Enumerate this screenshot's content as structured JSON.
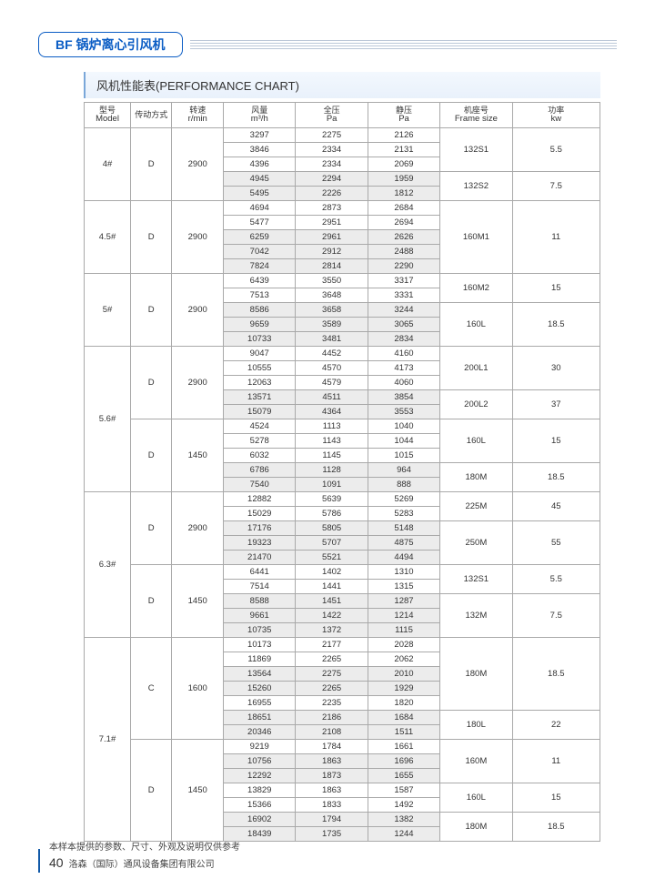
{
  "title_text": "BF 锅炉离心引风机",
  "section_title": "风机性能表(PERFORMANCE CHART)",
  "headers": [
    {
      "cn": "型号",
      "en": "Model"
    },
    {
      "cn": "传动方式",
      "en": ""
    },
    {
      "cn": "转速",
      "en": "r/min"
    },
    {
      "cn": "风量",
      "en": "m³/h"
    },
    {
      "cn": "全压",
      "en": "Pa"
    },
    {
      "cn": "静压",
      "en": "Pa"
    },
    {
      "cn": "机座号",
      "en": "Frame size"
    },
    {
      "cn": "功率",
      "en": "kw"
    }
  ],
  "groups": [
    {
      "model": "4#",
      "blocks": [
        {
          "drive": "D",
          "rpm": "2900",
          "rows": [
            {
              "f": "3297",
              "pt": "2275",
              "ps": "2126",
              "shade": false
            },
            {
              "f": "3846",
              "pt": "2334",
              "ps": "2131",
              "shade": false
            },
            {
              "f": "4396",
              "pt": "2334",
              "ps": "2069",
              "shade": false
            },
            {
              "f": "4945",
              "pt": "2294",
              "ps": "1959",
              "shade": true
            },
            {
              "f": "5495",
              "pt": "2226",
              "ps": "1812",
              "shade": true
            }
          ],
          "frames": [
            {
              "name": "132S1",
              "kw": "5.5",
              "span": 3
            },
            {
              "name": "132S2",
              "kw": "7.5",
              "span": 2
            }
          ]
        }
      ]
    },
    {
      "model": "4.5#",
      "blocks": [
        {
          "drive": "D",
          "rpm": "2900",
          "rows": [
            {
              "f": "4694",
              "pt": "2873",
              "ps": "2684",
              "shade": false
            },
            {
              "f": "5477",
              "pt": "2951",
              "ps": "2694",
              "shade": false
            },
            {
              "f": "6259",
              "pt": "2961",
              "ps": "2626",
              "shade": true
            },
            {
              "f": "7042",
              "pt": "2912",
              "ps": "2488",
              "shade": true
            },
            {
              "f": "7824",
              "pt": "2814",
              "ps": "2290",
              "shade": true
            }
          ],
          "frames": [
            {
              "name": "160M1",
              "kw": "11",
              "span": 5
            }
          ]
        }
      ]
    },
    {
      "model": "5#",
      "blocks": [
        {
          "drive": "D",
          "rpm": "2900",
          "rows": [
            {
              "f": "6439",
              "pt": "3550",
              "ps": "3317",
              "shade": false
            },
            {
              "f": "7513",
              "pt": "3648",
              "ps": "3331",
              "shade": false
            },
            {
              "f": "8586",
              "pt": "3658",
              "ps": "3244",
              "shade": true
            },
            {
              "f": "9659",
              "pt": "3589",
              "ps": "3065",
              "shade": true
            },
            {
              "f": "10733",
              "pt": "3481",
              "ps": "2834",
              "shade": true
            }
          ],
          "frames": [
            {
              "name": "160M2",
              "kw": "15",
              "span": 2
            },
            {
              "name": "160L",
              "kw": "18.5",
              "span": 3
            }
          ]
        }
      ]
    },
    {
      "model": "5.6#",
      "blocks": [
        {
          "drive": "D",
          "rpm": "2900",
          "rows": [
            {
              "f": "9047",
              "pt": "4452",
              "ps": "4160",
              "shade": false
            },
            {
              "f": "10555",
              "pt": "4570",
              "ps": "4173",
              "shade": false
            },
            {
              "f": "12063",
              "pt": "4579",
              "ps": "4060",
              "shade": false
            },
            {
              "f": "13571",
              "pt": "4511",
              "ps": "3854",
              "shade": true
            },
            {
              "f": "15079",
              "pt": "4364",
              "ps": "3553",
              "shade": true
            }
          ],
          "frames": [
            {
              "name": "200L1",
              "kw": "30",
              "span": 3
            },
            {
              "name": "200L2",
              "kw": "37",
              "span": 2
            }
          ]
        },
        {
          "drive": "D",
          "rpm": "1450",
          "rows": [
            {
              "f": "4524",
              "pt": "1113",
              "ps": "1040",
              "shade": false
            },
            {
              "f": "5278",
              "pt": "1143",
              "ps": "1044",
              "shade": false
            },
            {
              "f": "6032",
              "pt": "1145",
              "ps": "1015",
              "shade": false
            },
            {
              "f": "6786",
              "pt": "1128",
              "ps": "964",
              "shade": true
            },
            {
              "f": "7540",
              "pt": "1091",
              "ps": "888",
              "shade": true
            }
          ],
          "frames": [
            {
              "name": "160L",
              "kw": "15",
              "span": 3
            },
            {
              "name": "180M",
              "kw": "18.5",
              "span": 2
            }
          ]
        }
      ]
    },
    {
      "model": "6.3#",
      "blocks": [
        {
          "drive": "D",
          "rpm": "2900",
          "rows": [
            {
              "f": "12882",
              "pt": "5639",
              "ps": "5269",
              "shade": false
            },
            {
              "f": "15029",
              "pt": "5786",
              "ps": "5283",
              "shade": false
            },
            {
              "f": "17176",
              "pt": "5805",
              "ps": "5148",
              "shade": true
            },
            {
              "f": "19323",
              "pt": "5707",
              "ps": "4875",
              "shade": true
            },
            {
              "f": "21470",
              "pt": "5521",
              "ps": "4494",
              "shade": true
            }
          ],
          "frames": [
            {
              "name": "225M",
              "kw": "45",
              "span": 2
            },
            {
              "name": "250M",
              "kw": "55",
              "span": 3
            }
          ]
        },
        {
          "drive": "D",
          "rpm": "1450",
          "rows": [
            {
              "f": "6441",
              "pt": "1402",
              "ps": "1310",
              "shade": false
            },
            {
              "f": "7514",
              "pt": "1441",
              "ps": "1315",
              "shade": false
            },
            {
              "f": "8588",
              "pt": "1451",
              "ps": "1287",
              "shade": true
            },
            {
              "f": "9661",
              "pt": "1422",
              "ps": "1214",
              "shade": true
            },
            {
              "f": "10735",
              "pt": "1372",
              "ps": "1115",
              "shade": true
            }
          ],
          "frames": [
            {
              "name": "132S1",
              "kw": "5.5",
              "span": 2
            },
            {
              "name": "132M",
              "kw": "7.5",
              "span": 3
            }
          ]
        }
      ]
    },
    {
      "model": "7.1#",
      "blocks": [
        {
          "drive": "C",
          "rpm": "1600",
          "rows": [
            {
              "f": "10173",
              "pt": "2177",
              "ps": "2028",
              "shade": false
            },
            {
              "f": "11869",
              "pt": "2265",
              "ps": "2062",
              "shade": false
            },
            {
              "f": "13564",
              "pt": "2275",
              "ps": "2010",
              "shade": true
            },
            {
              "f": "15260",
              "pt": "2265",
              "ps": "1929",
              "shade": true
            },
            {
              "f": "16955",
              "pt": "2235",
              "ps": "1820",
              "shade": false
            },
            {
              "f": "18651",
              "pt": "2186",
              "ps": "1684",
              "shade": true
            },
            {
              "f": "20346",
              "pt": "2108",
              "ps": "1511",
              "shade": true
            }
          ],
          "frames": [
            {
              "name": "180M",
              "kw": "18.5",
              "span": 5
            },
            {
              "name": "180L",
              "kw": "22",
              "span": 2
            }
          ]
        },
        {
          "drive": "D",
          "rpm": "1450",
          "rows": [
            {
              "f": "9219",
              "pt": "1784",
              "ps": "1661",
              "shade": false
            },
            {
              "f": "10756",
              "pt": "1863",
              "ps": "1696",
              "shade": true
            },
            {
              "f": "12292",
              "pt": "1873",
              "ps": "1655",
              "shade": true
            },
            {
              "f": "13829",
              "pt": "1863",
              "ps": "1587",
              "shade": false
            },
            {
              "f": "15366",
              "pt": "1833",
              "ps": "1492",
              "shade": false
            },
            {
              "f": "16902",
              "pt": "1794",
              "ps": "1382",
              "shade": true
            },
            {
              "f": "18439",
              "pt": "1735",
              "ps": "1244",
              "shade": true
            }
          ],
          "frames": [
            {
              "name": "160M",
              "kw": "11",
              "span": 3
            },
            {
              "name": "160L",
              "kw": "15",
              "span": 2
            },
            {
              "name": "180M",
              "kw": "18.5",
              "span": 2
            }
          ]
        }
      ]
    }
  ],
  "footer_note": "本样本提供的参数、尺寸、外观及说明仅供参考",
  "company": "洛森（国际）通风设备集团有限公司",
  "page_number": "40"
}
